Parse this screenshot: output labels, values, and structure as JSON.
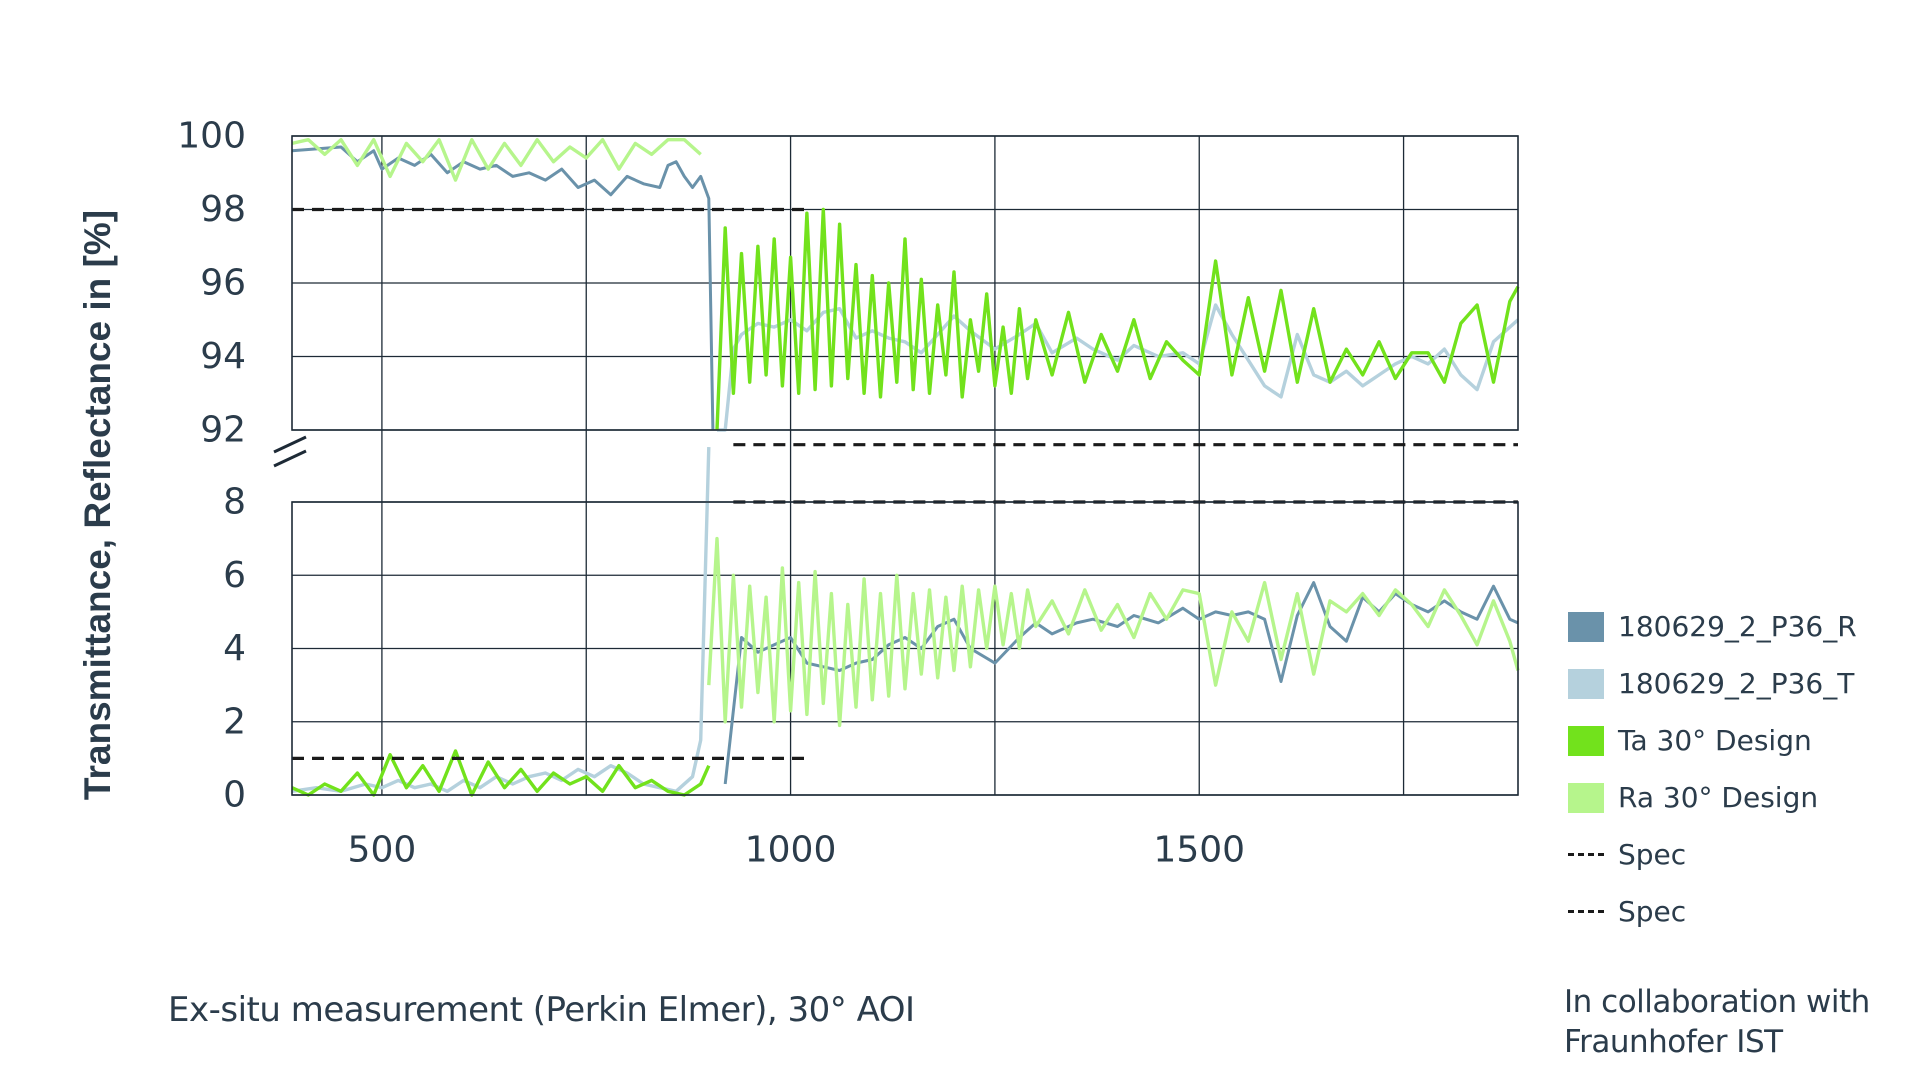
{
  "chart_data": {
    "type": "line",
    "ylabel": "Transmittance, Reflectance in [%]",
    "xlabel": "",
    "xlim": [
      390,
      1890
    ],
    "x_ticks": [
      500,
      1000,
      1500
    ],
    "x_tick_labels": [
      "500",
      "1000",
      "1500"
    ],
    "x_gridlines": [
      500,
      750,
      1000,
      1250,
      1500,
      1750
    ],
    "y_axis_broken": true,
    "upper_panel": {
      "ylim": [
        92,
        100
      ],
      "ticks": [
        92,
        94,
        96,
        98,
        100
      ],
      "tick_labels": [
        "92",
        "94",
        "96",
        "98",
        "100"
      ]
    },
    "lower_panel": {
      "ylim": [
        0,
        8
      ],
      "ticks": [
        0,
        2,
        4,
        6,
        8
      ],
      "tick_labels": [
        "0",
        "2",
        "4",
        "6",
        "8"
      ]
    },
    "grid": true,
    "legend_position": "right",
    "series": [
      {
        "name": "180629_2_P36_R",
        "color": "#6a92aa",
        "style": "solid",
        "x": [
          390,
          450,
          470,
          490,
          500,
          520,
          540,
          560,
          580,
          600,
          620,
          640,
          660,
          680,
          700,
          720,
          740,
          760,
          780,
          800,
          820,
          840,
          850,
          860,
          870,
          880,
          890,
          900,
          905,
          920,
          940,
          960,
          980,
          1000,
          1020,
          1040,
          1060,
          1080,
          1100,
          1120,
          1140,
          1160,
          1180,
          1200,
          1220,
          1250,
          1280,
          1300,
          1320,
          1350,
          1370,
          1400,
          1420,
          1450,
          1480,
          1500,
          1520,
          1540,
          1560,
          1580,
          1600,
          1620,
          1640,
          1660,
          1680,
          1700,
          1720,
          1740,
          1760,
          1780,
          1800,
          1820,
          1840,
          1860,
          1880,
          1890
        ],
        "values": [
          99.6,
          99.7,
          99.3,
          99.6,
          99.1,
          99.4,
          99.2,
          99.5,
          99.0,
          99.3,
          99.1,
          99.2,
          98.9,
          99.0,
          98.8,
          99.1,
          98.6,
          98.8,
          98.4,
          98.9,
          98.7,
          98.6,
          99.2,
          99.3,
          98.9,
          98.6,
          98.9,
          98.3,
          92.0,
          0.3,
          4.3,
          3.9,
          4.1,
          4.3,
          3.6,
          3.5,
          3.4,
          3.6,
          3.7,
          4.1,
          4.3,
          4.0,
          4.6,
          4.8,
          4.0,
          3.6,
          4.3,
          4.7,
          4.4,
          4.7,
          4.8,
          4.6,
          4.9,
          4.7,
          5.1,
          4.8,
          5.0,
          4.9,
          5.0,
          4.8,
          3.1,
          4.9,
          5.8,
          4.6,
          4.2,
          5.4,
          5.0,
          5.5,
          5.2,
          5.0,
          5.3,
          5.0,
          4.8,
          5.7,
          4.8,
          4.7
        ]
      },
      {
        "name": "180629_2_P36_T",
        "color": "#b5d1dd",
        "style": "solid",
        "x": [
          390,
          420,
          450,
          480,
          500,
          520,
          540,
          560,
          580,
          600,
          620,
          640,
          660,
          680,
          700,
          720,
          740,
          760,
          780,
          800,
          820,
          840,
          860,
          880,
          890,
          900,
          910,
          920,
          930,
          940,
          960,
          980,
          1000,
          1020,
          1040,
          1060,
          1080,
          1100,
          1120,
          1140,
          1160,
          1180,
          1200,
          1220,
          1250,
          1280,
          1300,
          1320,
          1350,
          1370,
          1400,
          1420,
          1450,
          1480,
          1500,
          1520,
          1540,
          1560,
          1580,
          1600,
          1620,
          1640,
          1660,
          1680,
          1700,
          1720,
          1740,
          1760,
          1780,
          1800,
          1820,
          1840,
          1860,
          1880,
          1890
        ],
        "values": [
          0.1,
          0.2,
          0.1,
          0.3,
          0.2,
          0.4,
          0.2,
          0.3,
          0.1,
          0.4,
          0.2,
          0.5,
          0.3,
          0.5,
          0.6,
          0.4,
          0.7,
          0.5,
          0.8,
          0.6,
          0.3,
          0.2,
          0.1,
          0.5,
          1.5,
          9.5,
          92.0,
          92.0,
          94.2,
          94.6,
          94.9,
          94.8,
          95.0,
          94.7,
          95.2,
          95.3,
          94.5,
          94.7,
          94.5,
          94.4,
          94.1,
          94.6,
          95.1,
          94.7,
          94.2,
          94.6,
          94.9,
          94.1,
          94.5,
          94.2,
          93.9,
          94.3,
          94.0,
          94.1,
          93.8,
          95.4,
          94.6,
          93.9,
          93.2,
          92.9,
          94.6,
          93.5,
          93.3,
          93.6,
          93.2,
          93.5,
          93.8,
          94.0,
          93.8,
          94.2,
          93.5,
          93.1,
          94.4,
          94.8,
          95.0
        ]
      },
      {
        "name": "Ta 30° Design",
        "color": "#72e21c",
        "style": "solid",
        "x": [
          390,
          410,
          430,
          450,
          470,
          490,
          510,
          530,
          550,
          570,
          590,
          610,
          630,
          650,
          670,
          690,
          710,
          730,
          750,
          770,
          790,
          810,
          830,
          850,
          870,
          890,
          900,
          910,
          920,
          930,
          940,
          950,
          960,
          970,
          980,
          990,
          1000,
          1010,
          1020,
          1030,
          1040,
          1050,
          1060,
          1070,
          1080,
          1090,
          1100,
          1110,
          1120,
          1130,
          1140,
          1150,
          1160,
          1170,
          1180,
          1190,
          1200,
          1210,
          1220,
          1230,
          1240,
          1250,
          1260,
          1270,
          1280,
          1290,
          1300,
          1320,
          1340,
          1360,
          1380,
          1400,
          1420,
          1440,
          1460,
          1480,
          1500,
          1520,
          1540,
          1560,
          1580,
          1600,
          1620,
          1640,
          1660,
          1680,
          1700,
          1720,
          1740,
          1760,
          1780,
          1800,
          1820,
          1840,
          1860,
          1880,
          1890
        ],
        "values": [
          0.2,
          0.0,
          0.3,
          0.1,
          0.6,
          0.0,
          1.1,
          0.2,
          0.8,
          0.1,
          1.2,
          0.0,
          0.9,
          0.2,
          0.7,
          0.1,
          0.6,
          0.3,
          0.5,
          0.1,
          0.8,
          0.2,
          0.4,
          0.1,
          0.0,
          0.3,
          0.8,
          92.0,
          97.5,
          93.0,
          96.8,
          93.3,
          97.0,
          93.5,
          97.2,
          93.2,
          96.7,
          93.0,
          97.9,
          93.1,
          98.0,
          93.2,
          97.6,
          93.4,
          96.5,
          93.0,
          96.2,
          92.9,
          96.0,
          93.3,
          97.2,
          93.1,
          96.1,
          93.0,
          95.4,
          93.5,
          96.3,
          92.9,
          95.0,
          93.6,
          95.7,
          93.2,
          94.8,
          93.0,
          95.3,
          93.4,
          95.0,
          93.5,
          95.2,
          93.3,
          94.6,
          93.6,
          95.0,
          93.4,
          94.4,
          93.9,
          93.5,
          96.6,
          93.5,
          95.6,
          93.6,
          95.8,
          93.3,
          95.3,
          93.3,
          94.2,
          93.5,
          94.4,
          93.4,
          94.1,
          94.1,
          93.3,
          94.9,
          95.4,
          93.3,
          95.5,
          95.9
        ]
      },
      {
        "name": "Ra 30° Design",
        "color": "#b6f58c",
        "style": "solid",
        "x": [
          390,
          410,
          430,
          450,
          470,
          490,
          510,
          530,
          550,
          570,
          590,
          610,
          630,
          650,
          670,
          690,
          710,
          730,
          750,
          770,
          790,
          810,
          830,
          850,
          870,
          890,
          900,
          910,
          920,
          930,
          940,
          950,
          960,
          970,
          980,
          990,
          1000,
          1010,
          1020,
          1030,
          1040,
          1050,
          1060,
          1070,
          1080,
          1090,
          1100,
          1110,
          1120,
          1130,
          1140,
          1150,
          1160,
          1170,
          1180,
          1190,
          1200,
          1210,
          1220,
          1230,
          1240,
          1250,
          1260,
          1270,
          1280,
          1290,
          1300,
          1320,
          1340,
          1360,
          1380,
          1400,
          1420,
          1440,
          1460,
          1480,
          1500,
          1520,
          1540,
          1560,
          1580,
          1600,
          1620,
          1640,
          1660,
          1680,
          1700,
          1720,
          1740,
          1760,
          1780,
          1800,
          1820,
          1840,
          1860,
          1880,
          1890
        ],
        "values": [
          99.8,
          99.9,
          99.5,
          99.9,
          99.2,
          99.9,
          98.9,
          99.8,
          99.3,
          99.9,
          98.8,
          99.9,
          99.1,
          99.8,
          99.2,
          99.9,
          99.3,
          99.7,
          99.4,
          99.9,
          99.1,
          99.8,
          99.5,
          99.9,
          99.9,
          99.5,
          3.0,
          7.0,
          2.0,
          6.0,
          2.4,
          5.7,
          2.8,
          5.4,
          2.0,
          6.2,
          2.3,
          5.8,
          2.2,
          6.1,
          2.5,
          5.5,
          1.9,
          5.2,
          2.4,
          5.9,
          2.6,
          5.5,
          2.7,
          6.0,
          2.9,
          5.5,
          3.3,
          5.6,
          3.2,
          5.4,
          3.4,
          5.7,
          3.5,
          5.6,
          4.0,
          5.7,
          4.1,
          5.5,
          4.0,
          5.6,
          4.6,
          5.3,
          4.4,
          5.6,
          4.5,
          5.2,
          4.3,
          5.5,
          4.8,
          5.6,
          5.5,
          3.0,
          5.0,
          4.2,
          5.8,
          3.7,
          5.5,
          3.3,
          5.3,
          5.0,
          5.5,
          4.9,
          5.6,
          5.2,
          4.6,
          5.6,
          4.9,
          4.1,
          5.3,
          4.2,
          3.4
        ]
      },
      {
        "name": "Spec",
        "color": "#1a1a1a",
        "style": "dashed",
        "segments": [
          {
            "x": [
              390,
              1020
            ],
            "y": [
              98,
              98
            ]
          },
          {
            "x": [
              930,
              1890
            ],
            "y": [
              91.6,
              91.6
            ]
          }
        ]
      },
      {
        "name": "Spec",
        "color": "#1a1a1a",
        "style": "dashed",
        "segments": [
          {
            "x": [
              390,
              1020
            ],
            "y": [
              1,
              1
            ]
          },
          {
            "x": [
              930,
              1890
            ],
            "y": [
              8,
              8
            ]
          }
        ]
      }
    ]
  },
  "footnote": "Ex-situ measurement (Perkin Elmer), 30° AOI",
  "credit_line1": "In collaboration with",
  "credit_line2": "Fraunhofer IST"
}
